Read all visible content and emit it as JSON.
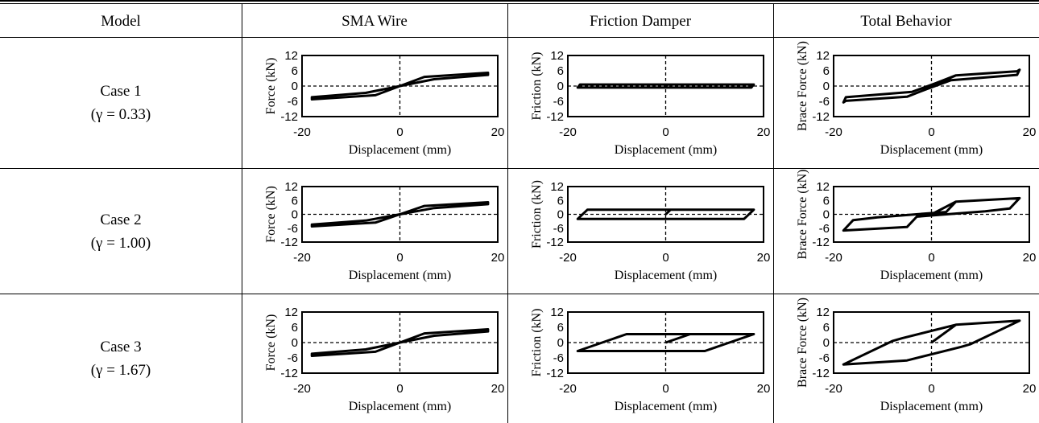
{
  "table": {
    "headers": [
      "Model",
      "SMA Wire",
      "Friction Damper",
      "Total Behavior"
    ],
    "rows": [
      {
        "case": "Case 1",
        "gamma": "(γ = 0.33)"
      },
      {
        "case": "Case 2",
        "gamma": "(γ = 1.00)"
      },
      {
        "case": "Case 3",
        "gamma": "(γ = 1.67)"
      }
    ]
  },
  "chart_data": [
    {
      "id": "r1_sma",
      "type": "line",
      "ylabel": "Force (kN)",
      "xlabel": "Displacement (mm)",
      "xlim": [
        -20,
        20
      ],
      "ylim": [
        -12,
        12
      ],
      "xticks": [
        "-20",
        "0",
        "20"
      ],
      "yticks": [
        "12",
        "6",
        "0",
        "-6",
        "-12"
      ],
      "series": [
        {
          "x": [
            0,
            5,
            18,
            18,
            7,
            0,
            -5,
            -18,
            -18,
            -7,
            0
          ],
          "y": [
            0,
            3.6,
            5.2,
            4.4,
            2.7,
            0,
            -3.6,
            -5.2,
            -4.4,
            -2.7,
            0
          ]
        }
      ]
    },
    {
      "id": "r1_fd",
      "type": "line",
      "ylabel": "Friction (kN)",
      "xlabel": "Displacement (mm)",
      "xlim": [
        -20,
        20
      ],
      "ylim": [
        -12,
        12
      ],
      "xticks": [
        "-20",
        "0",
        "20"
      ],
      "yticks": [
        "12",
        "6",
        "0",
        "-6",
        "-12"
      ],
      "series": [
        {
          "x": [
            0,
            0.5,
            18,
            17.5,
            -18,
            -17.5,
            0.5
          ],
          "y": [
            0,
            0.6,
            0.6,
            -0.6,
            -0.6,
            0.6,
            0.6
          ]
        }
      ]
    },
    {
      "id": "r1_tot",
      "type": "line",
      "ylabel": "Brace Force (kN)",
      "xlabel": "Displacement (mm)",
      "xlim": [
        -20,
        20
      ],
      "ylim": [
        -12,
        12
      ],
      "xticks": [
        "-20",
        "0",
        "20"
      ],
      "yticks": [
        "12",
        "6",
        "0",
        "-6",
        "-12"
      ],
      "series": [
        {
          "x": [
            0,
            5,
            17.5,
            18,
            17.5,
            4,
            -1,
            -5,
            -17.5,
            -18,
            -17.5,
            -4,
            1,
            5
          ],
          "y": [
            0,
            4.2,
            5.8,
            6.4,
            4.4,
            2.3,
            -1.2,
            -4.2,
            -5.8,
            -6.4,
            -4.4,
            -2.3,
            1.2,
            4.2
          ]
        }
      ]
    },
    {
      "id": "r2_sma",
      "type": "line",
      "ylabel": "Force (kN)",
      "xlabel": "Displacement (mm)",
      "xlim": [
        -20,
        20
      ],
      "ylim": [
        -12,
        12
      ],
      "xticks": [
        "-20",
        "0",
        "20"
      ],
      "yticks": [
        "12",
        "6",
        "0",
        "-6",
        "-12"
      ],
      "series": [
        {
          "x": [
            0,
            5,
            18,
            18,
            7,
            0,
            -5,
            -18,
            -18,
            -7,
            0
          ],
          "y": [
            0,
            3.6,
            5.2,
            4.4,
            2.7,
            0,
            -3.6,
            -5.2,
            -4.4,
            -2.7,
            0
          ]
        }
      ]
    },
    {
      "id": "r2_fd",
      "type": "line",
      "ylabel": "Friction (kN)",
      "xlabel": "Displacement (mm)",
      "xlim": [
        -20,
        20
      ],
      "ylim": [
        -12,
        12
      ],
      "xticks": [
        "-20",
        "0",
        "20"
      ],
      "yticks": [
        "12",
        "6",
        "0",
        "-6",
        "-12"
      ],
      "series": [
        {
          "x": [
            0,
            1,
            18,
            16,
            -18,
            -16,
            1
          ],
          "y": [
            0,
            2,
            2,
            -2,
            -2,
            2,
            2
          ]
        }
      ]
    },
    {
      "id": "r2_tot",
      "type": "line",
      "ylabel": "Brace Force (kN)",
      "xlabel": "Displacement (mm)",
      "xlim": [
        -20,
        20
      ],
      "ylim": [
        -12,
        12
      ],
      "xticks": [
        "-20",
        "0",
        "20"
      ],
      "yticks": [
        "12",
        "6",
        "0",
        "-6",
        "-12"
      ],
      "series": [
        {
          "x": [
            0,
            5,
            18,
            16,
            11,
            -3,
            -5,
            -18,
            -16,
            -11,
            3,
            5
          ],
          "y": [
            0,
            5.5,
            7,
            2.5,
            1.3,
            -1,
            -5.5,
            -7,
            -2.5,
            -1.3,
            1,
            5.5
          ]
        }
      ]
    },
    {
      "id": "r3_sma",
      "type": "line",
      "ylabel": "Force (kN)",
      "xlabel": "Displacement (mm)",
      "xlim": [
        -20,
        20
      ],
      "ylim": [
        -12,
        12
      ],
      "xticks": [
        "-20",
        "0",
        "20"
      ],
      "yticks": [
        "12",
        "6",
        "0",
        "-6",
        "-12"
      ],
      "series": [
        {
          "x": [
            0,
            5,
            18,
            18,
            7,
            0,
            -5,
            -18,
            -18,
            -7,
            0
          ],
          "y": [
            0,
            3.6,
            5.2,
            4.4,
            2.7,
            0,
            -3.6,
            -5.2,
            -4.4,
            -2.7,
            0
          ]
        }
      ]
    },
    {
      "id": "r3_fd",
      "type": "line",
      "ylabel": "Friction (kN)",
      "xlabel": "Displacement (mm)",
      "xlim": [
        -20,
        20
      ],
      "ylim": [
        -12,
        12
      ],
      "xticks": [
        "-20",
        "0",
        "20"
      ],
      "yticks": [
        "12",
        "6",
        "0",
        "-6",
        "-12"
      ],
      "series": [
        {
          "x": [
            0,
            5,
            18,
            8,
            -18,
            -8,
            5
          ],
          "y": [
            0,
            3.3,
            3.3,
            -3.3,
            -3.3,
            3.3,
            3.3
          ]
        }
      ]
    },
    {
      "id": "r3_tot",
      "type": "line",
      "ylabel": "Brace Force (kN)",
      "xlabel": "Displacement (mm)",
      "xlim": [
        -20,
        20
      ],
      "ylim": [
        -12,
        12
      ],
      "xticks": [
        "-20",
        "0",
        "20"
      ],
      "yticks": [
        "12",
        "6",
        "0",
        "-6",
        "-12"
      ],
      "series": [
        {
          "x": [
            0,
            5,
            18,
            8,
            6,
            -5,
            -18,
            -8,
            -6,
            5
          ],
          "y": [
            0,
            7,
            8.6,
            -0.6,
            -1.7,
            -7,
            -8.6,
            0.6,
            1.7,
            7
          ]
        }
      ]
    }
  ]
}
